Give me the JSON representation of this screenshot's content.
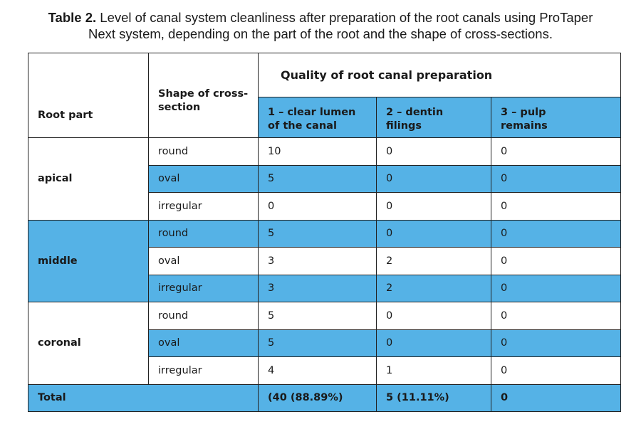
{
  "caption": {
    "label": "Table 2.",
    "line1": "Level of canal system cleanliness after preparation of the root canals using ProTaper",
    "line2": "Next system, depending on the part of the root and the shape of cross-sections."
  },
  "headers": {
    "root_part": "Root part",
    "shape_line1": "Shape of cross-",
    "shape_line2": "section",
    "quality": "Quality of root canal preparation",
    "col1_line1": "1 – clear lumen",
    "col1_line2": "of the canal",
    "col2_line1": "2 – dentin",
    "col2_line2": "filings",
    "col3_line1": "3 – pulp",
    "col3_line2": "remains"
  },
  "groups": [
    {
      "root_part": "apical",
      "rows": [
        {
          "shape": "round",
          "c1": "10",
          "c2": "0",
          "c3": "0"
        },
        {
          "shape": "oval",
          "c1": "5",
          "c2": "0",
          "c3": "0"
        },
        {
          "shape": "irregular",
          "c1": "0",
          "c2": "0",
          "c3": "0"
        }
      ]
    },
    {
      "root_part": "middle",
      "rows": [
        {
          "shape": "round",
          "c1": "5",
          "c2": "0",
          "c3": "0"
        },
        {
          "shape": "oval",
          "c1": "3",
          "c2": "2",
          "c3": "0"
        },
        {
          "shape": "irregular",
          "c1": "3",
          "c2": "2",
          "c3": "0"
        }
      ]
    },
    {
      "root_part": "coronal",
      "rows": [
        {
          "shape": "round",
          "c1": "5",
          "c2": "0",
          "c3": "0"
        },
        {
          "shape": "oval",
          "c1": "5",
          "c2": "0",
          "c3": "0"
        },
        {
          "shape": "irregular",
          "c1": "4",
          "c2": "1",
          "c3": "0"
        }
      ]
    }
  ],
  "total": {
    "label": "Total",
    "c1": "(40 (88.89%)",
    "c2": "5 (11.11%)",
    "c3": "0"
  },
  "colors": {
    "highlight": "#55b2e6",
    "border": "#222222"
  }
}
